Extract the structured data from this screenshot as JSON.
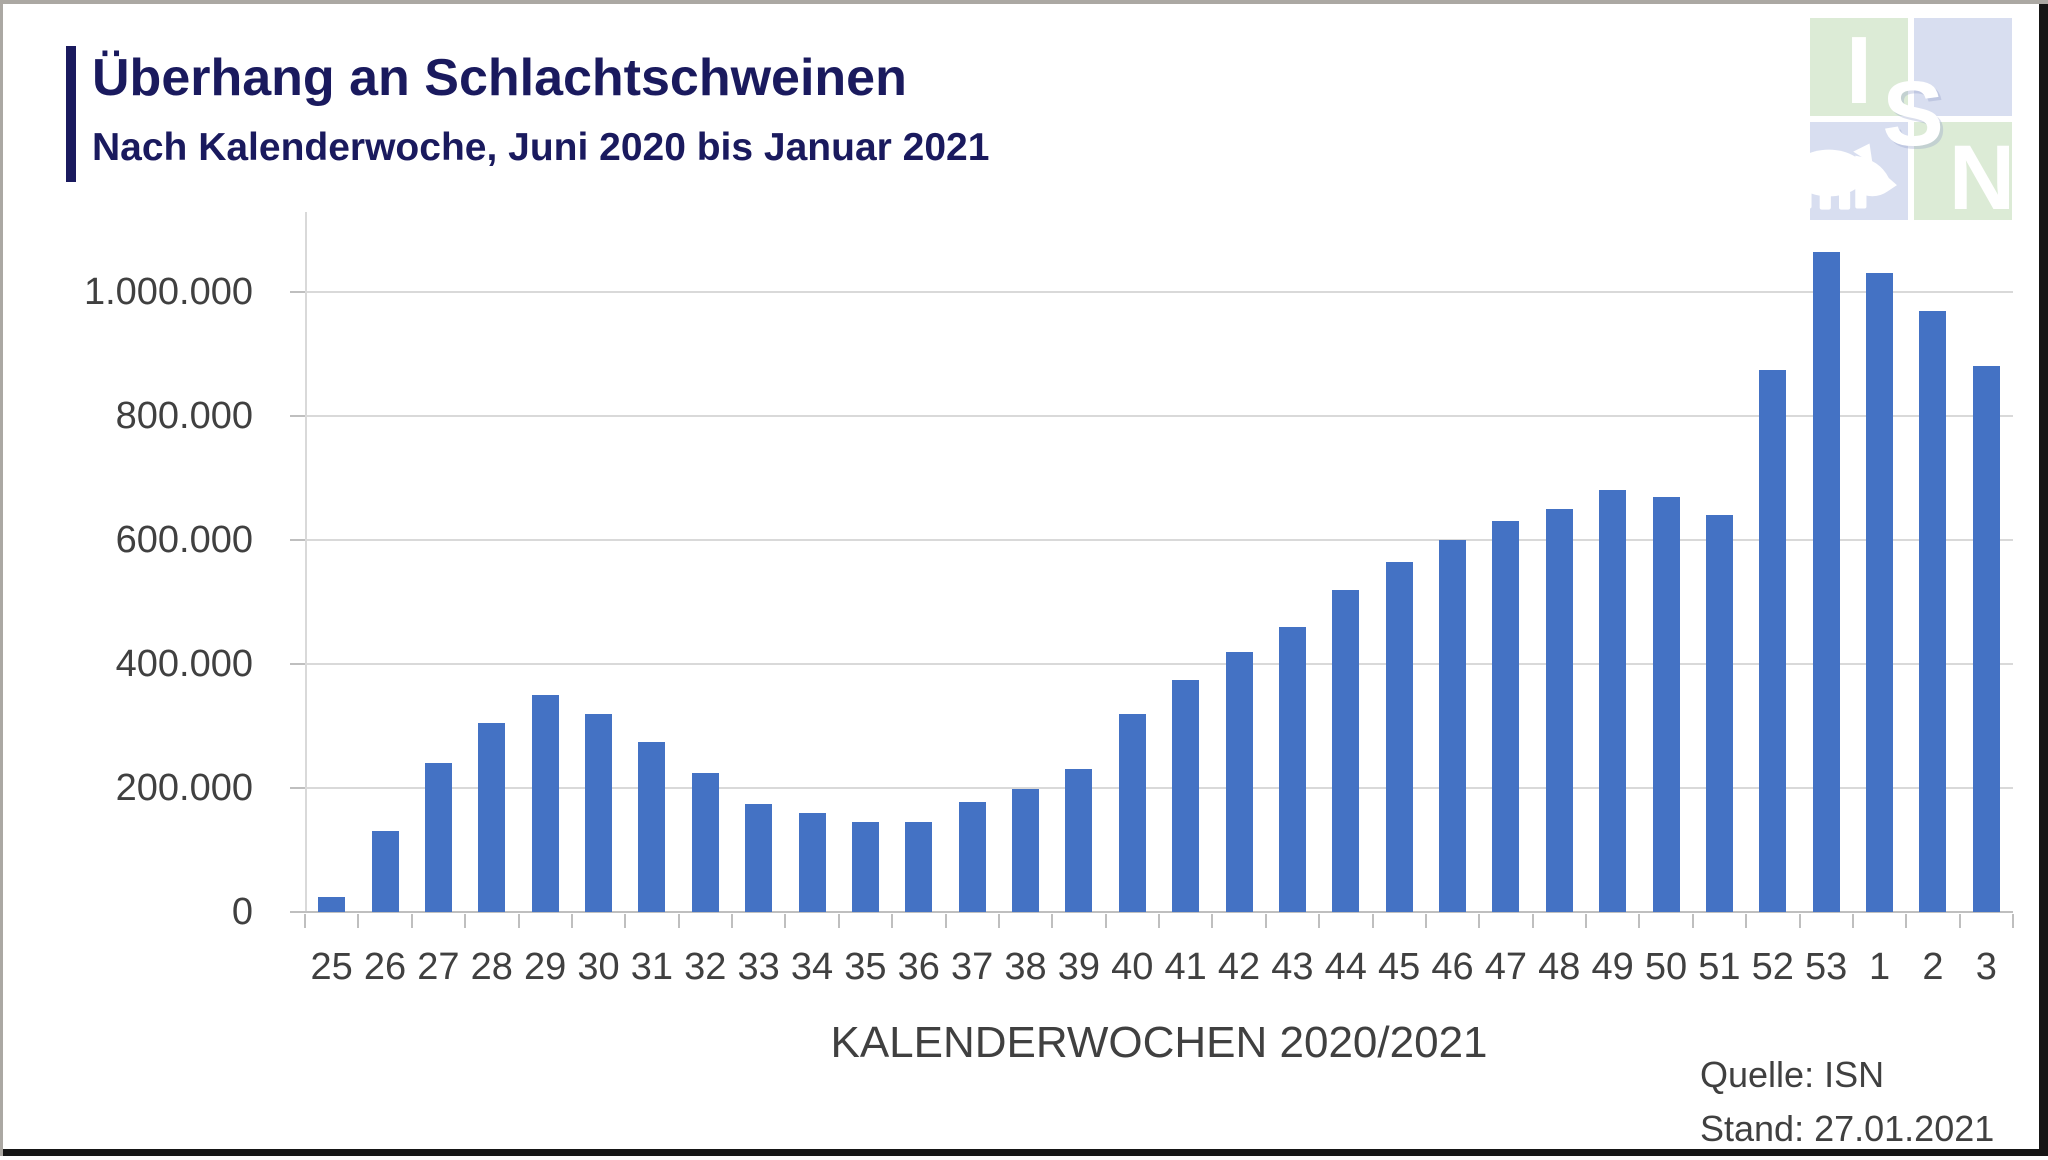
{
  "header": {
    "title": "Überhang an Schlachtschweinen",
    "subtitle": "Nach Kalenderwoche, Juni 2020 bis Januar 2021"
  },
  "logo": {
    "letters": [
      "I",
      "S",
      "N"
    ]
  },
  "footer": {
    "source": "Quelle: ISN",
    "stand": "Stand: 27.01.2021"
  },
  "colors": {
    "bar": "#4472C4",
    "title": "#1A1A5E",
    "text": "#404040",
    "grid": "#D9D9D9",
    "axis": "#BFBFBF",
    "logo_green": "#DCEBD6",
    "logo_blue": "#D8DEF0"
  },
  "chart_data": {
    "type": "bar",
    "title": "Überhang an Schlachtschweinen",
    "subtitle": "Nach Kalenderwoche, Juni 2020 bis Januar 2021",
    "xlabel": "KALENDERWOCHEN 2020/2021",
    "ylabel": "",
    "categories": [
      "25",
      "26",
      "27",
      "28",
      "29",
      "30",
      "31",
      "32",
      "33",
      "34",
      "35",
      "36",
      "37",
      "38",
      "39",
      "40",
      "41",
      "42",
      "43",
      "44",
      "45",
      "46",
      "47",
      "48",
      "49",
      "50",
      "51",
      "52",
      "53",
      "1",
      "2",
      "3"
    ],
    "values": [
      25000,
      130000,
      240000,
      305000,
      350000,
      320000,
      275000,
      225000,
      175000,
      160000,
      145000,
      145000,
      178000,
      198000,
      230000,
      320000,
      375000,
      420000,
      460000,
      520000,
      565000,
      600000,
      630000,
      650000,
      680000,
      670000,
      640000,
      875000,
      1065000,
      1030000,
      970000,
      880000
    ],
    "ylim": [
      0,
      1100000
    ],
    "yticks": [
      0,
      200000,
      400000,
      600000,
      800000,
      1000000
    ],
    "ytick_labels": [
      "0",
      "200.000",
      "400.000",
      "600.000",
      "800.000",
      "1.000.000"
    ],
    "grid": true,
    "legend_position": "none",
    "source": "Quelle: ISN",
    "stand": "Stand: 27.01.2021"
  }
}
